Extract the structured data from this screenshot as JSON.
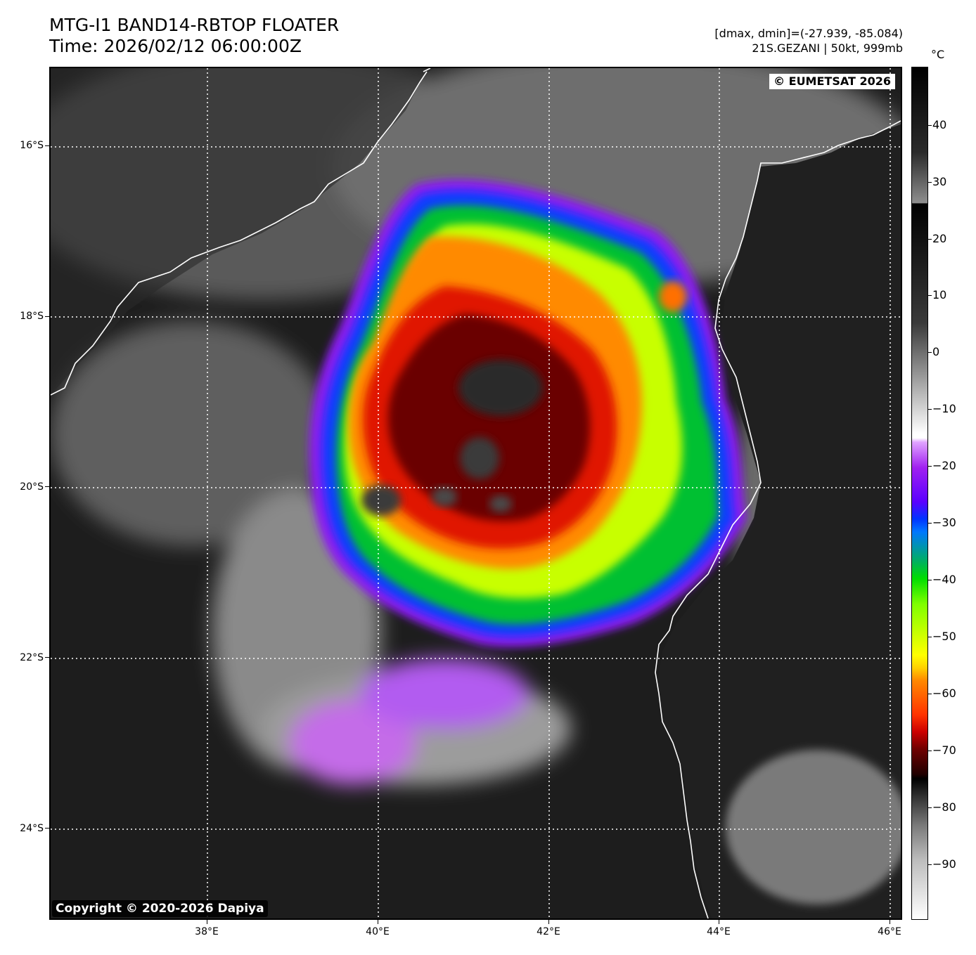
{
  "header": {
    "title": "MTG-I1 BAND14-RBTOP FLOATER",
    "time": "Time: 2026/02/12 06:00:00Z",
    "data_range": "[dmax, dmin]=(-27.939, -85.084)",
    "storm_info": "21S.GEZANI | 50kt, 999mb"
  },
  "map": {
    "credit_top": "© EUMETSAT 2026",
    "credit_bottom": "Copyright © 2020-2026 Dapiya",
    "lat_labels": [
      "16°S",
      "18°S",
      "20°S",
      "22°S",
      "24°S"
    ],
    "lon_labels": [
      "38°E",
      "40°E",
      "42°E",
      "44°E",
      "46°E"
    ],
    "colors": {
      "coastline": "#ffffff",
      "gridline": "#ffffff",
      "background_cloud_free": "#1c1c1c"
    }
  },
  "colorbar": {
    "unit": "°C",
    "labels": [
      "40",
      "30",
      "20",
      "10",
      "0",
      "−10",
      "−20",
      "−30",
      "−40",
      "−50",
      "−60",
      "−70",
      "−80",
      "−90"
    ]
  }
}
